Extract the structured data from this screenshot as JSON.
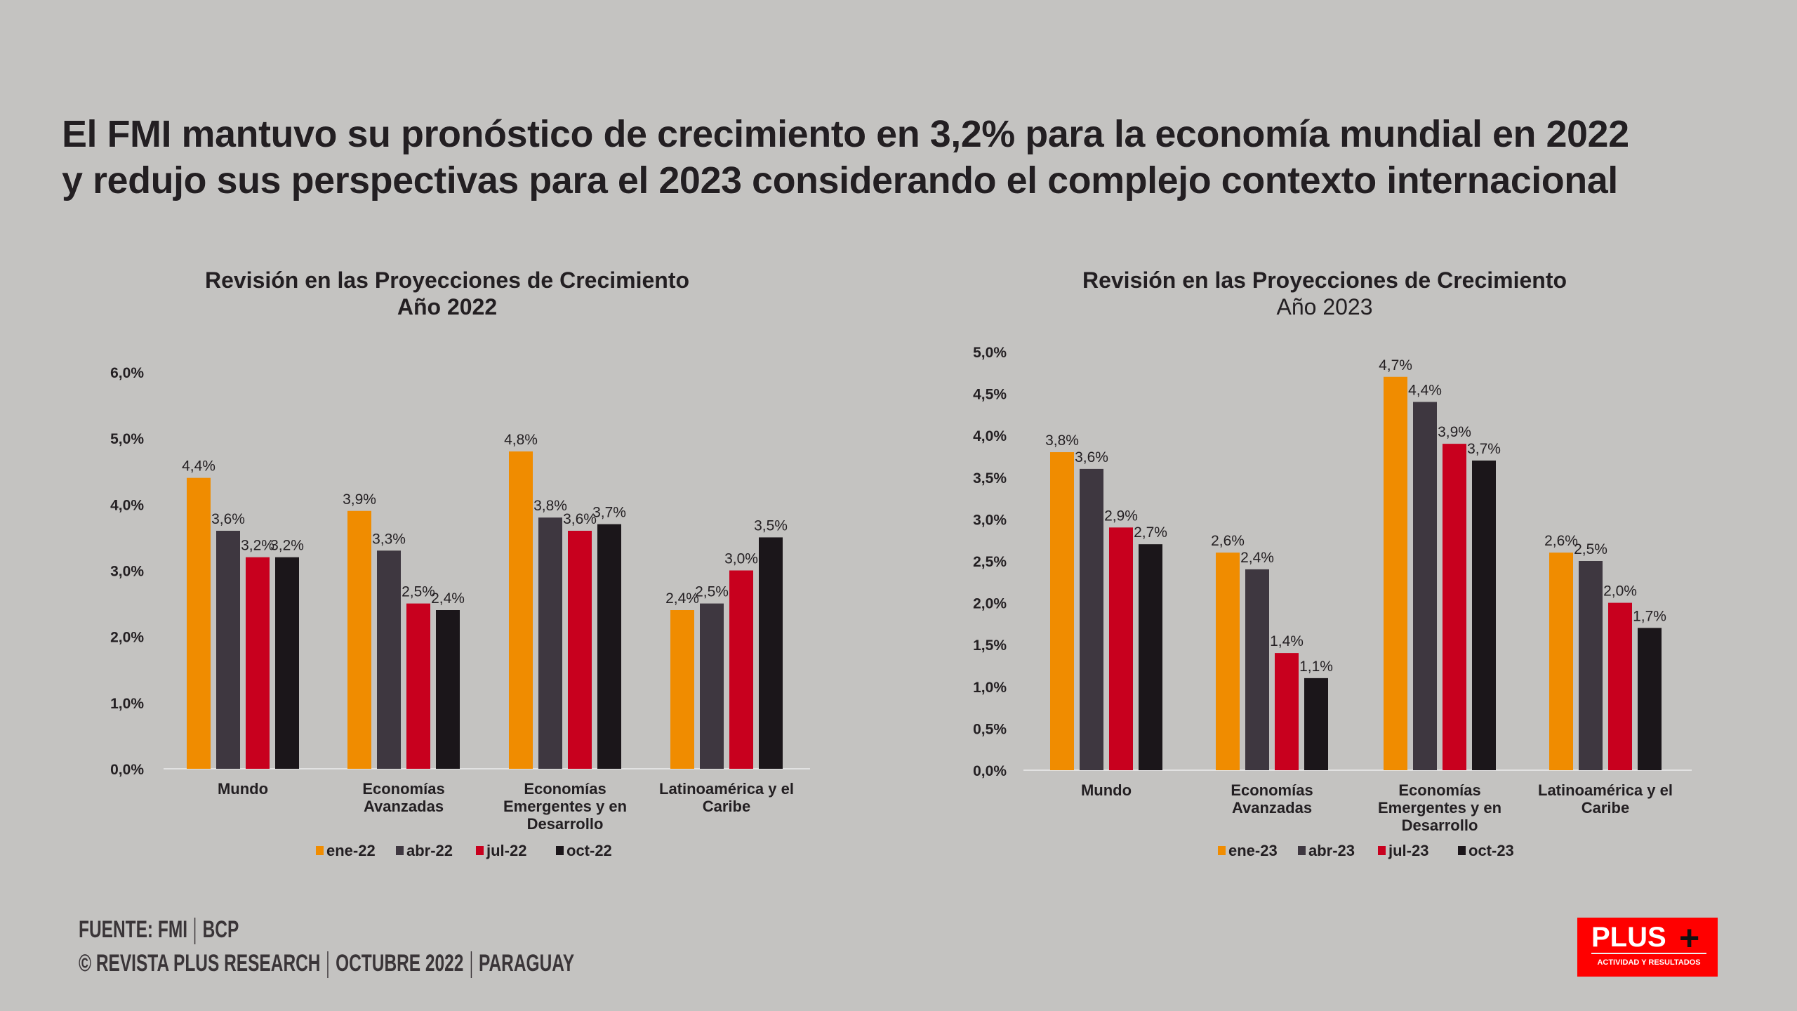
{
  "title": {
    "line1": "El FMI mantuvo su pronóstico de crecimiento en 3,2% para la economía mundial en 2022",
    "line2": "y redujo sus perspectivas para el 2023 considerando el complejo contexto internacional"
  },
  "colors": {
    "ene": "#f08c00",
    "abr": "#3e3740",
    "jul": "#c8001e",
    "oct": "#1b161a",
    "background": "#c4c3c1"
  },
  "chart_data": [
    {
      "type": "bar",
      "title": "Revisión en las Proyecciones de Crecimiento",
      "subtitle": "Año 2022",
      "categories": [
        "Mundo",
        "Economías Avanzadas",
        "Economías Emergentes y en Desarrollo",
        "Latinoamérica y el Caribe"
      ],
      "series": [
        {
          "name": "ene-22",
          "values": [
            4.4,
            3.9,
            4.8,
            2.4
          ]
        },
        {
          "name": "abr-22",
          "values": [
            3.6,
            3.3,
            3.8,
            2.5
          ]
        },
        {
          "name": "jul-22",
          "values": [
            3.2,
            2.5,
            3.6,
            3.0
          ]
        },
        {
          "name": "oct-22",
          "values": [
            3.2,
            2.4,
            3.7,
            3.5
          ]
        }
      ],
      "ylim": [
        0,
        6
      ],
      "yticks": [
        "0,0%",
        "1,0%",
        "2,0%",
        "3,0%",
        "4,0%",
        "5,0%",
        "6,0%"
      ],
      "grid": false,
      "legend": "bottom"
    },
    {
      "type": "bar",
      "title": "Revisión en las Proyecciones de Crecimiento",
      "subtitle": "Año 2023",
      "categories": [
        "Mundo",
        "Economías Avanzadas",
        "Economías Emergentes y en Desarrollo",
        "Latinoamérica y el Caribe"
      ],
      "series": [
        {
          "name": "ene-23",
          "values": [
            3.8,
            2.6,
            4.7,
            2.6
          ]
        },
        {
          "name": "abr-23",
          "values": [
            3.6,
            2.4,
            4.4,
            2.5
          ]
        },
        {
          "name": "jul-23",
          "values": [
            2.9,
            1.4,
            3.9,
            2.0
          ]
        },
        {
          "name": "oct-23",
          "values": [
            2.7,
            1.1,
            3.7,
            1.7
          ]
        }
      ],
      "ylim": [
        0,
        5
      ],
      "yticks": [
        "0,0%",
        "0,5%",
        "1,0%",
        "1,5%",
        "2,0%",
        "2,5%",
        "3,0%",
        "3,5%",
        "4,0%",
        "4,5%",
        "5,0%"
      ],
      "grid": false,
      "legend": "bottom"
    }
  ],
  "footer": {
    "source": "FUENTE: FMI",
    "source2": "BCP",
    "credit": "© REVISTA PLUS RESEARCH",
    "date": "OCTUBRE 2022",
    "country": "PARAGUAY"
  },
  "logo": {
    "word": "PLUS",
    "tagline": "ACTIVIDAD Y RESULTADOS"
  }
}
